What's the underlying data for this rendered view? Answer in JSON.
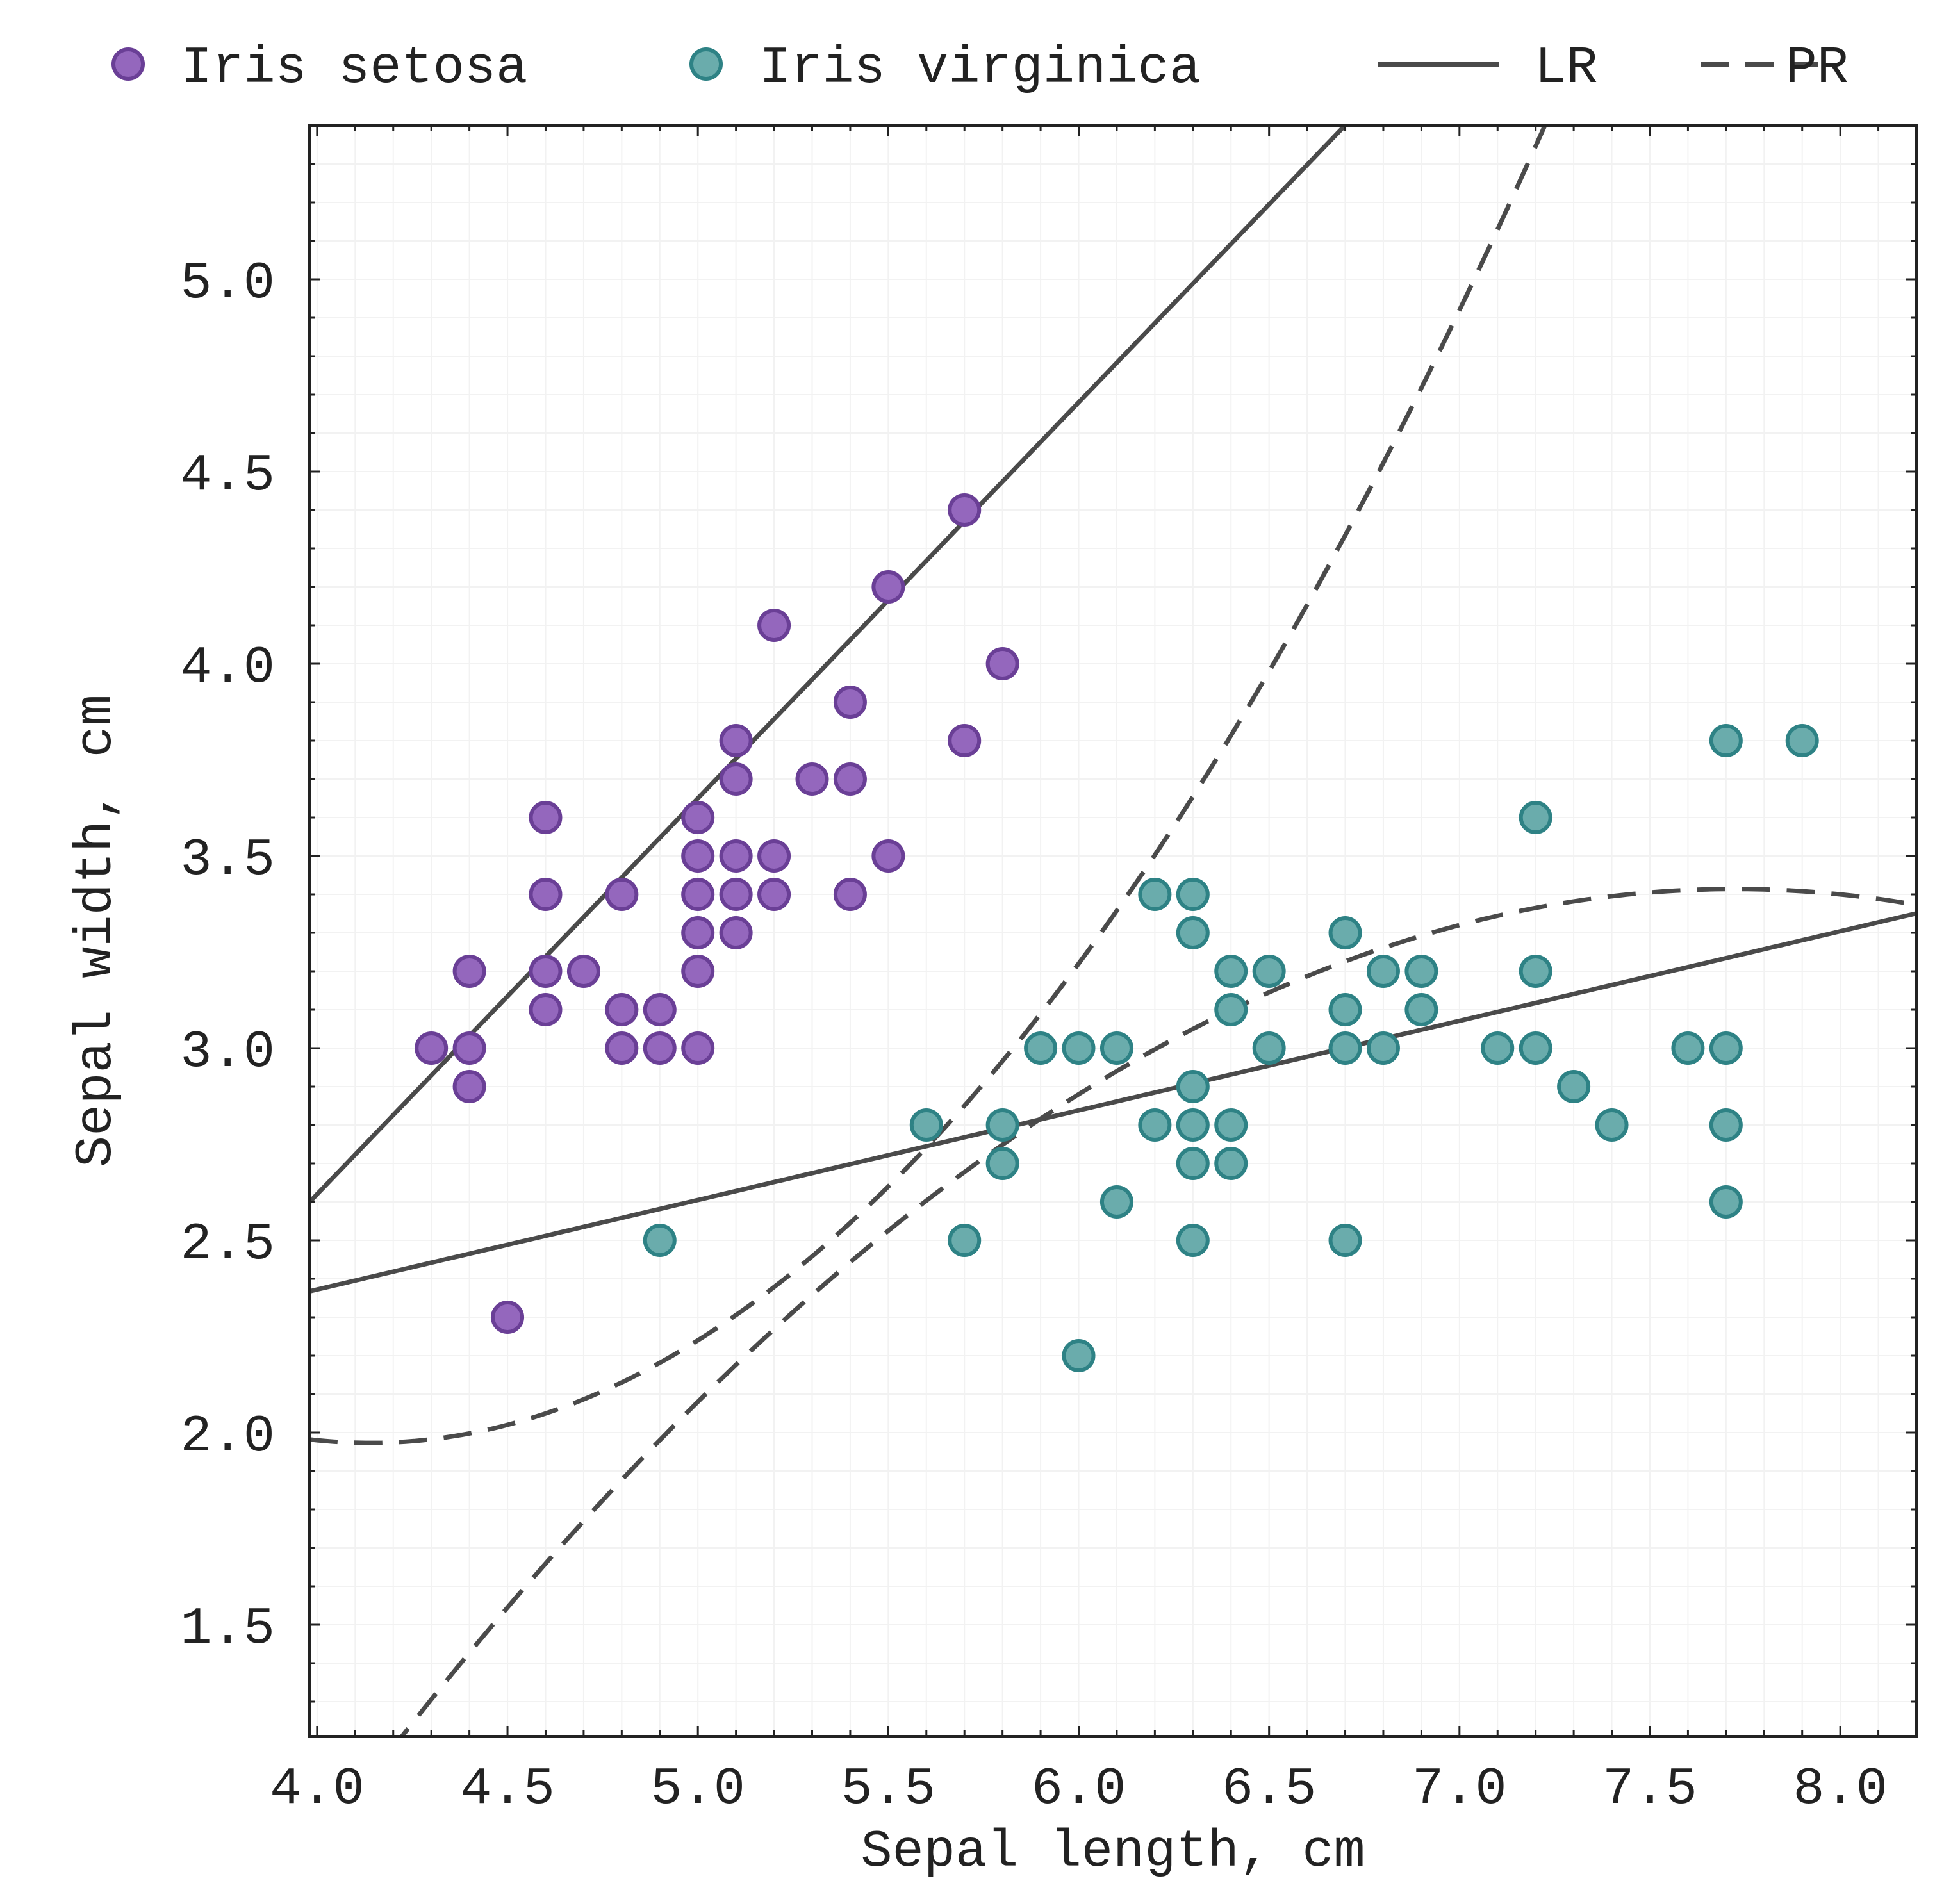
{
  "chart_data": {
    "type": "scatter",
    "title": "",
    "xlabel": "Sepal length, cm",
    "ylabel": "Sepal width, cm",
    "xlim": [
      3.98,
      8.2
    ],
    "ylim": [
      1.21,
      5.4
    ],
    "xticks": [
      "4.0",
      "4.5",
      "5.0",
      "5.5",
      "6.0",
      "6.5",
      "7.0",
      "7.5",
      "8.0"
    ],
    "yticks": [
      "1.5",
      "2.0",
      "2.5",
      "3.0",
      "3.5",
      "4.0",
      "4.5",
      "5.0"
    ],
    "grid": true,
    "legend_position": "top",
    "legend": [
      {
        "label": "Iris setosa",
        "kind": "marker",
        "color": "#9467bd"
      },
      {
        "label": "Iris virginica",
        "kind": "marker",
        "color": "#6aacac"
      },
      {
        "label": "LR",
        "kind": "solid-line",
        "color": "#4a4a4a"
      },
      {
        "label": "PR",
        "kind": "dashed-line",
        "color": "#4a4a4a"
      }
    ],
    "series": [
      {
        "name": "Iris setosa",
        "fill": "#9467bd",
        "edge": "#6a3f96",
        "points": [
          [
            4.3,
            3.0
          ],
          [
            4.4,
            3.2
          ],
          [
            4.4,
            3.0
          ],
          [
            4.4,
            2.9
          ],
          [
            4.5,
            2.3
          ],
          [
            4.6,
            3.6
          ],
          [
            4.6,
            3.4
          ],
          [
            4.6,
            3.2
          ],
          [
            4.6,
            3.1
          ],
          [
            4.7,
            3.2
          ],
          [
            4.8,
            3.4
          ],
          [
            4.8,
            3.1
          ],
          [
            4.8,
            3.0
          ],
          [
            4.9,
            3.1
          ],
          [
            4.9,
            3.0
          ],
          [
            5.0,
            3.6
          ],
          [
            5.0,
            3.5
          ],
          [
            5.0,
            3.4
          ],
          [
            5.0,
            3.3
          ],
          [
            5.0,
            3.2
          ],
          [
            5.0,
            3.0
          ],
          [
            5.1,
            3.8
          ],
          [
            5.1,
            3.7
          ],
          [
            5.1,
            3.5
          ],
          [
            5.1,
            3.4
          ],
          [
            5.1,
            3.3
          ],
          [
            5.2,
            4.1
          ],
          [
            5.2,
            3.5
          ],
          [
            5.2,
            3.4
          ],
          [
            5.3,
            3.7
          ],
          [
            5.4,
            3.9
          ],
          [
            5.4,
            3.7
          ],
          [
            5.4,
            3.4
          ],
          [
            5.5,
            4.2
          ],
          [
            5.5,
            3.5
          ],
          [
            5.7,
            4.4
          ],
          [
            5.7,
            3.8
          ],
          [
            5.8,
            4.0
          ]
        ]
      },
      {
        "name": "Iris virginica",
        "fill": "#6aacac",
        "edge": "#2e8285",
        "points": [
          [
            4.9,
            2.5
          ],
          [
            5.6,
            2.8
          ],
          [
            5.7,
            2.5
          ],
          [
            5.8,
            2.8
          ],
          [
            5.8,
            2.7
          ],
          [
            5.9,
            3.0
          ],
          [
            6.0,
            3.0
          ],
          [
            6.0,
            2.2
          ],
          [
            6.1,
            3.0
          ],
          [
            6.1,
            2.6
          ],
          [
            6.2,
            3.4
          ],
          [
            6.2,
            2.8
          ],
          [
            6.3,
            3.4
          ],
          [
            6.3,
            3.3
          ],
          [
            6.3,
            2.9
          ],
          [
            6.3,
            2.8
          ],
          [
            6.3,
            2.7
          ],
          [
            6.3,
            2.5
          ],
          [
            6.4,
            3.2
          ],
          [
            6.4,
            3.1
          ],
          [
            6.4,
            2.8
          ],
          [
            6.4,
            2.7
          ],
          [
            6.5,
            3.2
          ],
          [
            6.5,
            3.0
          ],
          [
            6.7,
            3.3
          ],
          [
            6.7,
            3.1
          ],
          [
            6.7,
            3.0
          ],
          [
            6.7,
            2.5
          ],
          [
            6.8,
            3.2
          ],
          [
            6.8,
            3.0
          ],
          [
            6.9,
            3.2
          ],
          [
            6.9,
            3.1
          ],
          [
            7.1,
            3.0
          ],
          [
            7.2,
            3.6
          ],
          [
            7.2,
            3.2
          ],
          [
            7.2,
            3.0
          ],
          [
            7.3,
            2.9
          ],
          [
            7.4,
            2.8
          ],
          [
            7.6,
            3.0
          ],
          [
            7.7,
            3.8
          ],
          [
            7.7,
            3.0
          ],
          [
            7.7,
            2.8
          ],
          [
            7.7,
            2.6
          ],
          [
            7.9,
            3.8
          ]
        ]
      }
    ],
    "fits": [
      {
        "name": "LR",
        "group": "Iris setosa",
        "style": "solid",
        "coef": [
          -1.5,
          1.03
        ]
      },
      {
        "name": "PR",
        "group": "Iris setosa",
        "style": "dashed",
        "coef": [
          8.14,
          -2.98,
          0.36
        ]
      },
      {
        "name": "LR",
        "group": "Iris virginica",
        "style": "solid",
        "coef": [
          1.44,
          0.233
        ]
      },
      {
        "name": "PR",
        "group": "Iris virginica",
        "style": "dashed",
        "coef": [
          -7.32,
          2.78,
          -0.18
        ]
      }
    ]
  }
}
